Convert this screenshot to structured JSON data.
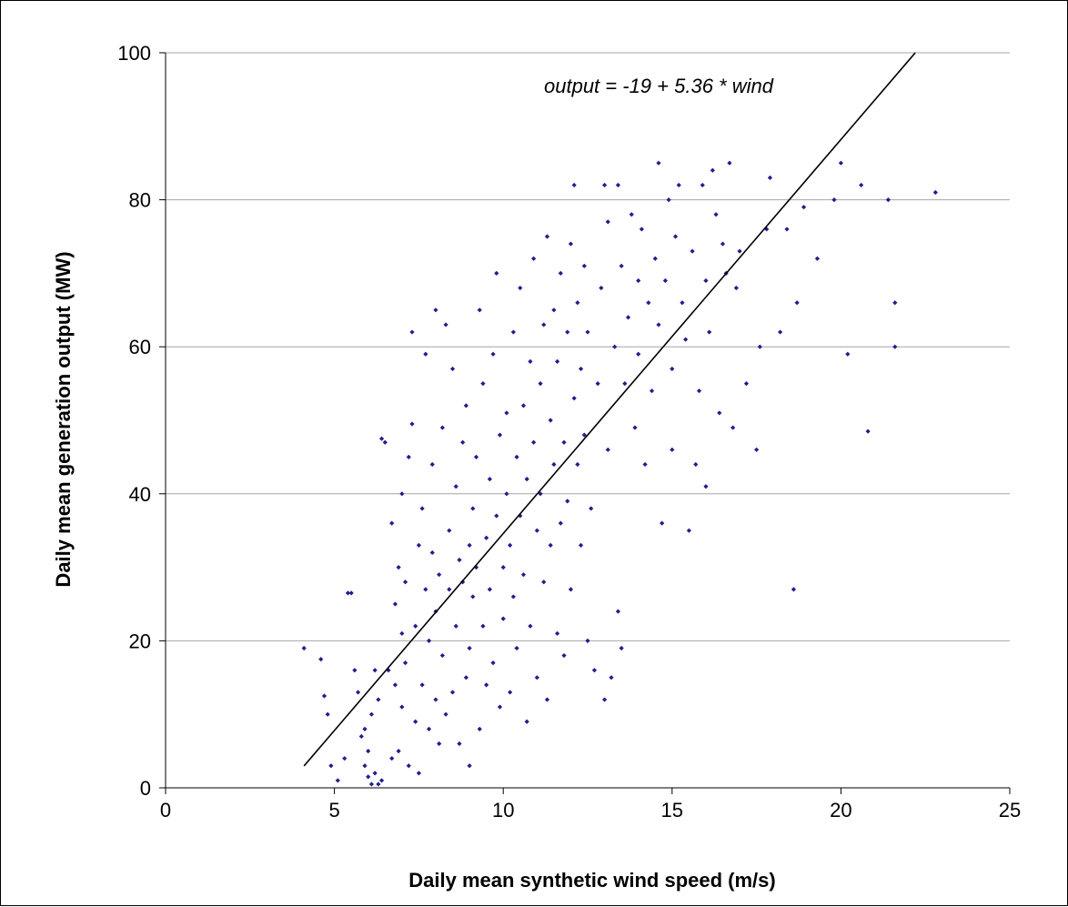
{
  "chart_data": {
    "type": "scatter",
    "title": "",
    "xlabel": "Daily mean synthetic wind speed (m/s)",
    "ylabel": "Daily mean generation output (MW)",
    "xlim": [
      0,
      25
    ],
    "ylim": [
      0,
      100
    ],
    "xticks": [
      "0",
      "5",
      "10",
      "15",
      "20",
      "25"
    ],
    "yticks": [
      "0",
      "20",
      "40",
      "60",
      "80",
      "100"
    ],
    "grid": "horizontal",
    "legend": "none",
    "colors": {
      "points": "#1f1f8c",
      "line": "#000000",
      "grid": "#a6a6a6"
    },
    "annotation": "output = -19 + 5.36 * wind",
    "fit_line": {
      "intercept": -19,
      "slope": 5.36,
      "x_range": [
        4.1,
        22.2
      ]
    },
    "series": [
      {
        "points": [
          [
            4.1,
            19
          ],
          [
            4.6,
            17.5
          ],
          [
            4.7,
            12.5
          ],
          [
            4.8,
            10
          ],
          [
            4.9,
            3
          ],
          [
            5.1,
            1
          ],
          [
            5.3,
            4
          ],
          [
            5.4,
            26.5
          ],
          [
            5.5,
            26.5
          ],
          [
            5.6,
            16
          ],
          [
            5.7,
            13
          ],
          [
            5.8,
            7
          ],
          [
            5.9,
            8
          ],
          [
            5.9,
            3
          ],
          [
            6,
            1.5
          ],
          [
            6,
            5
          ],
          [
            6.1,
            0.5
          ],
          [
            6.1,
            10
          ],
          [
            6.2,
            2
          ],
          [
            6.2,
            16
          ],
          [
            6.3,
            0.5
          ],
          [
            6.3,
            12
          ],
          [
            6.4,
            1
          ],
          [
            6.4,
            47.5
          ],
          [
            6.5,
            47
          ],
          [
            6.6,
            16
          ],
          [
            6.7,
            4
          ],
          [
            6.7,
            36
          ],
          [
            6.8,
            14
          ],
          [
            6.8,
            25
          ],
          [
            6.9,
            5
          ],
          [
            6.9,
            30
          ],
          [
            7,
            11
          ],
          [
            7,
            21
          ],
          [
            7,
            40
          ],
          [
            7.1,
            28
          ],
          [
            7.1,
            17
          ],
          [
            7.2,
            3
          ],
          [
            7.2,
            45
          ],
          [
            7.3,
            49.5
          ],
          [
            7.3,
            62
          ],
          [
            7.4,
            9
          ],
          [
            7.4,
            22
          ],
          [
            7.5,
            33
          ],
          [
            7.5,
            2
          ],
          [
            7.6,
            38
          ],
          [
            7.6,
            14
          ],
          [
            7.7,
            27
          ],
          [
            7.7,
            59
          ],
          [
            7.8,
            8
          ],
          [
            7.8,
            20
          ],
          [
            7.9,
            44
          ],
          [
            7.9,
            32
          ],
          [
            8,
            65
          ],
          [
            8,
            12
          ],
          [
            8,
            24
          ],
          [
            8.1,
            6
          ],
          [
            8.1,
            29
          ],
          [
            8.2,
            49
          ],
          [
            8.2,
            18
          ],
          [
            8.3,
            63
          ],
          [
            8.3,
            10
          ],
          [
            8.4,
            35
          ],
          [
            8.4,
            27
          ],
          [
            8.5,
            13
          ],
          [
            8.5,
            57
          ],
          [
            8.6,
            22
          ],
          [
            8.6,
            41
          ],
          [
            8.7,
            31
          ],
          [
            8.7,
            6
          ],
          [
            8.8,
            47
          ],
          [
            8.8,
            28
          ],
          [
            8.9,
            52
          ],
          [
            8.9,
            15
          ],
          [
            9,
            3
          ],
          [
            9,
            33
          ],
          [
            9,
            19
          ],
          [
            9.1,
            38
          ],
          [
            9.1,
            26
          ],
          [
            9.2,
            30
          ],
          [
            9.2,
            45
          ],
          [
            9.3,
            8
          ],
          [
            9.3,
            65
          ],
          [
            9.4,
            22
          ],
          [
            9.4,
            55
          ],
          [
            9.5,
            34
          ],
          [
            9.5,
            14
          ],
          [
            9.6,
            42
          ],
          [
            9.6,
            27
          ],
          [
            9.7,
            59
          ],
          [
            9.7,
            17
          ],
          [
            9.8,
            37
          ],
          [
            9.8,
            70
          ],
          [
            9.9,
            11
          ],
          [
            9.9,
            48
          ],
          [
            10,
            30
          ],
          [
            10,
            23
          ],
          [
            10.1,
            51
          ],
          [
            10.1,
            40
          ],
          [
            10.2,
            13
          ],
          [
            10.2,
            33
          ],
          [
            10.3,
            62
          ],
          [
            10.3,
            26
          ],
          [
            10.4,
            45
          ],
          [
            10.4,
            19
          ],
          [
            10.5,
            37
          ],
          [
            10.5,
            68
          ],
          [
            10.6,
            52
          ],
          [
            10.6,
            29
          ],
          [
            10.7,
            9
          ],
          [
            10.7,
            42
          ],
          [
            10.8,
            58
          ],
          [
            10.8,
            22
          ],
          [
            10.9,
            47
          ],
          [
            10.9,
            72
          ],
          [
            11,
            35
          ],
          [
            11,
            15
          ],
          [
            11.1,
            55
          ],
          [
            11.1,
            40
          ],
          [
            11.2,
            63
          ],
          [
            11.2,
            28
          ],
          [
            11.3,
            75
          ],
          [
            11.3,
            12
          ],
          [
            11.4,
            50
          ],
          [
            11.4,
            33
          ],
          [
            11.5,
            44
          ],
          [
            11.5,
            65
          ],
          [
            11.6,
            21
          ],
          [
            11.6,
            58
          ],
          [
            11.7,
            36
          ],
          [
            11.7,
            70
          ],
          [
            11.8,
            47
          ],
          [
            11.8,
            18
          ],
          [
            11.9,
            62
          ],
          [
            11.9,
            39
          ],
          [
            12,
            74
          ],
          [
            12,
            27
          ],
          [
            12.1,
            53
          ],
          [
            12.1,
            82
          ],
          [
            12.2,
            44
          ],
          [
            12.2,
            66
          ],
          [
            12.3,
            33
          ],
          [
            12.3,
            57
          ],
          [
            12.4,
            71
          ],
          [
            12.4,
            48
          ],
          [
            12.5,
            20
          ],
          [
            12.5,
            62
          ],
          [
            12.6,
            38
          ],
          [
            12.7,
            16
          ],
          [
            12.8,
            55
          ],
          [
            12.9,
            68
          ],
          [
            13,
            12
          ],
          [
            13,
            82
          ],
          [
            13.1,
            46
          ],
          [
            13.1,
            77
          ],
          [
            13.2,
            15
          ],
          [
            13.3,
            60
          ],
          [
            13.4,
            24
          ],
          [
            13.4,
            82
          ],
          [
            13.5,
            19
          ],
          [
            13.5,
            71
          ],
          [
            13.6,
            55
          ],
          [
            13.7,
            64
          ],
          [
            13.8,
            78
          ],
          [
            13.9,
            49
          ],
          [
            14,
            69
          ],
          [
            14,
            59
          ],
          [
            14.1,
            76
          ],
          [
            14.2,
            44
          ],
          [
            14.3,
            66
          ],
          [
            14.4,
            54
          ],
          [
            14.5,
            72
          ],
          [
            14.6,
            63
          ],
          [
            14.6,
            85
          ],
          [
            14.7,
            36
          ],
          [
            14.8,
            69
          ],
          [
            14.9,
            80
          ],
          [
            15,
            57
          ],
          [
            15,
            46
          ],
          [
            15.1,
            75
          ],
          [
            15.2,
            82
          ],
          [
            15.3,
            66
          ],
          [
            15.4,
            61
          ],
          [
            15.5,
            35
          ],
          [
            15.6,
            73
          ],
          [
            15.7,
            44
          ],
          [
            15.8,
            54
          ],
          [
            15.9,
            82
          ],
          [
            16,
            69
          ],
          [
            16,
            41
          ],
          [
            16.1,
            62
          ],
          [
            16.2,
            84
          ],
          [
            16.3,
            78
          ],
          [
            16.4,
            51
          ],
          [
            16.5,
            74
          ],
          [
            16.6,
            70
          ],
          [
            16.7,
            85
          ],
          [
            16.8,
            49
          ],
          [
            16.9,
            68
          ],
          [
            17,
            73
          ],
          [
            17.2,
            55
          ],
          [
            17.5,
            46
          ],
          [
            17.6,
            60
          ],
          [
            17.8,
            76
          ],
          [
            17.9,
            83
          ],
          [
            18.2,
            62
          ],
          [
            18.4,
            76
          ],
          [
            18.6,
            27
          ],
          [
            18.7,
            66
          ],
          [
            18.9,
            79
          ],
          [
            19.3,
            72
          ],
          [
            19.8,
            80
          ],
          [
            20,
            85
          ],
          [
            20.2,
            59
          ],
          [
            20.6,
            82
          ],
          [
            20.8,
            48.5
          ],
          [
            21.4,
            80
          ],
          [
            21.6,
            66
          ],
          [
            21.6,
            60
          ],
          [
            22.8,
            81
          ]
        ]
      }
    ]
  }
}
